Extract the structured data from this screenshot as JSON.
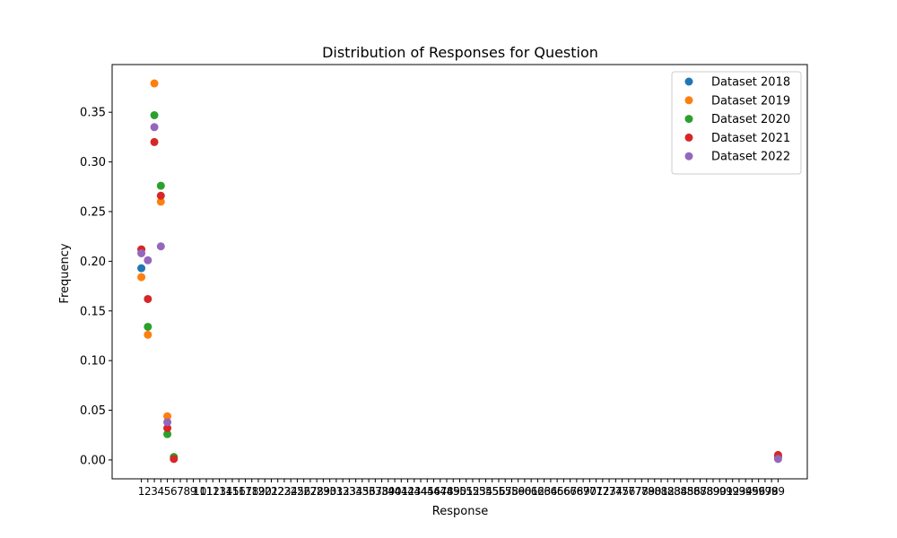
{
  "chart_data": {
    "type": "scatter",
    "title": "Distribution of Responses for Question",
    "xlabel": "Response",
    "ylabel": "Frequency",
    "xlim": [
      -3.5,
      103.5
    ],
    "ylim": [
      -0.019,
      0.398
    ],
    "grid": false,
    "legend_position": "top-right",
    "x_ticks": [
      1,
      2,
      3,
      4,
      5,
      6,
      7,
      8,
      9,
      10,
      11,
      12,
      13,
      14,
      15,
      16,
      17,
      18,
      19,
      20,
      21,
      22,
      23,
      24,
      25,
      26,
      27,
      28,
      29,
      30,
      31,
      32,
      33,
      34,
      35,
      36,
      37,
      38,
      39,
      40,
      41,
      42,
      43,
      44,
      45,
      46,
      47,
      48,
      49,
      50,
      51,
      52,
      53,
      54,
      55,
      56,
      57,
      58,
      59,
      60,
      61,
      62,
      63,
      64,
      65,
      66,
      67,
      68,
      69,
      70,
      71,
      72,
      73,
      74,
      75,
      76,
      77,
      78,
      79,
      80,
      81,
      82,
      83,
      84,
      85,
      86,
      87,
      88,
      89,
      90,
      91,
      92,
      93,
      94,
      95,
      96,
      97,
      98,
      99
    ],
    "y_ticks": [
      "0.00",
      "0.05",
      "0.10",
      "0.15",
      "0.20",
      "0.25",
      "0.30",
      "0.35"
    ],
    "series": [
      {
        "name": "Dataset 2018",
        "color": "#1f77b4",
        "points": [
          [
            1,
            0.193
          ],
          [
            99,
            0.004
          ]
        ]
      },
      {
        "name": "Dataset 2019",
        "color": "#ff7f0e",
        "points": [
          [
            1,
            0.184
          ],
          [
            2,
            0.126
          ],
          [
            3,
            0.379
          ],
          [
            4,
            0.26
          ],
          [
            5,
            0.044
          ],
          [
            99,
            0.004
          ]
        ]
      },
      {
        "name": "Dataset 2020",
        "color": "#2ca02c",
        "points": [
          [
            2,
            0.134
          ],
          [
            3,
            0.347
          ],
          [
            4,
            0.276
          ],
          [
            5,
            0.026
          ],
          [
            6,
            0.003
          ],
          [
            99,
            0.003
          ]
        ]
      },
      {
        "name": "Dataset 2021",
        "color": "#d62728",
        "points": [
          [
            1,
            0.212
          ],
          [
            2,
            0.162
          ],
          [
            3,
            0.32
          ],
          [
            4,
            0.266
          ],
          [
            5,
            0.032
          ],
          [
            6,
            0.001
          ],
          [
            99,
            0.005
          ]
        ]
      },
      {
        "name": "Dataset 2022",
        "color": "#9467bd",
        "points": [
          [
            1,
            0.208
          ],
          [
            2,
            0.201
          ],
          [
            3,
            0.335
          ],
          [
            4,
            0.215
          ],
          [
            5,
            0.038
          ],
          [
            99,
            0.001
          ]
        ]
      }
    ]
  }
}
